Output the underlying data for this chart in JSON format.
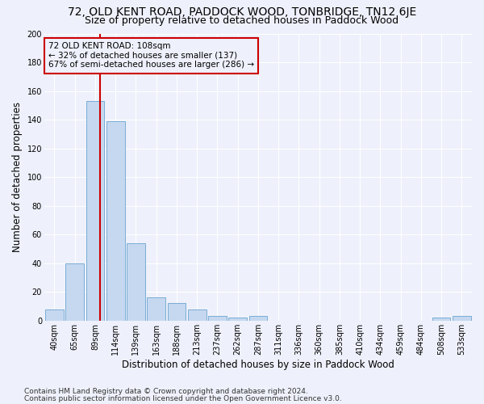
{
  "title": "72, OLD KENT ROAD, PADDOCK WOOD, TONBRIDGE, TN12 6JE",
  "subtitle": "Size of property relative to detached houses in Paddock Wood",
  "xlabel": "Distribution of detached houses by size in Paddock Wood",
  "ylabel": "Number of detached properties",
  "bin_labels": [
    "40sqm",
    "65sqm",
    "89sqm",
    "114sqm",
    "139sqm",
    "163sqm",
    "188sqm",
    "213sqm",
    "237sqm",
    "262sqm",
    "287sqm",
    "311sqm",
    "336sqm",
    "360sqm",
    "385sqm",
    "410sqm",
    "434sqm",
    "459sqm",
    "484sqm",
    "508sqm",
    "533sqm"
  ],
  "bar_values": [
    8,
    40,
    153,
    139,
    54,
    16,
    12,
    8,
    3,
    2,
    3,
    0,
    0,
    0,
    0,
    0,
    0,
    0,
    0,
    2,
    3
  ],
  "bar_color": "#c5d8f0",
  "bar_edgecolor": "#7aadd4",
  "bar_linewidth": 0.7,
  "vline_color": "#cc0000",
  "annotation_line1": "72 OLD KENT ROAD: 108sqm",
  "annotation_line2": "← 32% of detached houses are smaller (137)",
  "annotation_line3": "67% of semi-detached houses are larger (286) →",
  "ylim": [
    0,
    200
  ],
  "yticks": [
    0,
    20,
    40,
    60,
    80,
    100,
    120,
    140,
    160,
    180,
    200
  ],
  "footnote1": "Contains HM Land Registry data © Crown copyright and database right 2024.",
  "footnote2": "Contains public sector information licensed under the Open Government Licence v3.0.",
  "bg_color": "#eef1fb",
  "grid_color": "#ffffff",
  "title_fontsize": 10,
  "subtitle_fontsize": 9,
  "xlabel_fontsize": 8.5,
  "ylabel_fontsize": 8.5,
  "tick_fontsize": 7,
  "annotation_fontsize": 7.5,
  "footnote_fontsize": 6.5
}
